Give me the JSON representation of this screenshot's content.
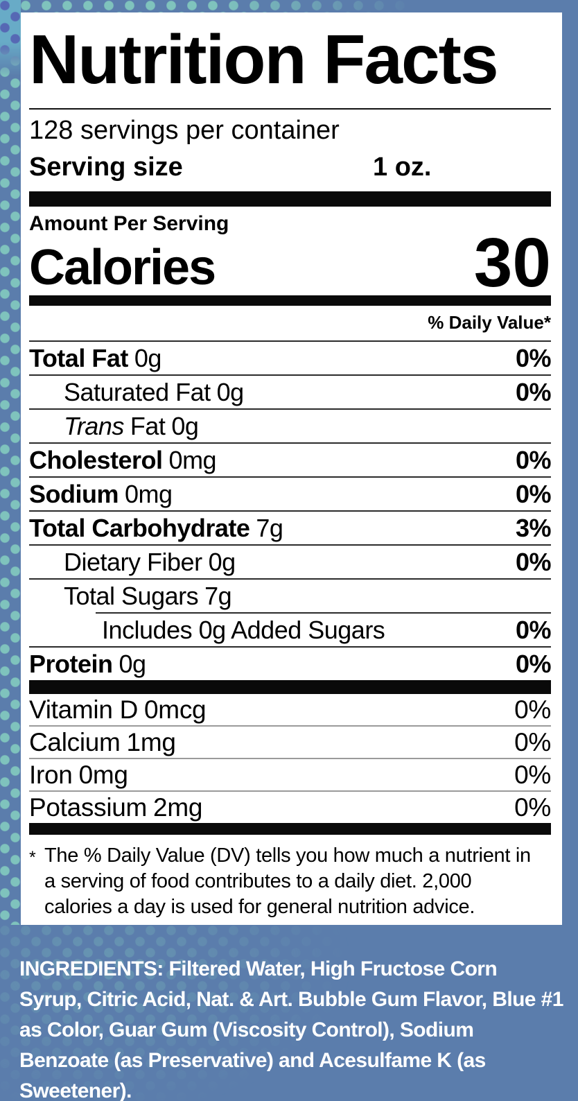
{
  "colors": {
    "background": "#5b7dac",
    "pattern_dot_teal": "#7fc3bd",
    "pattern_top_background": "#68abc7",
    "pattern_dot_indigo": "#5668b4",
    "label_background": "#ffffff",
    "label_text": "#000000",
    "ingredients_text": "#ffffff"
  },
  "label": {
    "title": "Nutrition Facts",
    "servings_per_container": "128 servings per container",
    "serving_size": {
      "label": "Serving size",
      "value": "1 oz."
    },
    "amount_per_serving": "Amount Per Serving",
    "calories": {
      "label": "Calories",
      "value": "30"
    },
    "daily_value_header": "% Daily Value*",
    "rows": [
      {
        "name": "Total Fat",
        "amount": "0g",
        "dv": "0%"
      },
      {
        "name": "Saturated Fat",
        "amount": "0g",
        "dv": "0%"
      },
      {
        "name_italic": "Trans",
        "name": "Fat",
        "amount": "0g",
        "dv": ""
      },
      {
        "name": "Cholesterol",
        "amount": "0mg",
        "dv": "0%"
      },
      {
        "name": "Sodium",
        "amount": "0mg",
        "dv": "0%"
      },
      {
        "name": "Total Carbohydrate",
        "amount": "7g",
        "dv": "3%"
      },
      {
        "name": "Dietary Fiber",
        "amount": "0g",
        "dv": "0%"
      },
      {
        "name": "Total Sugars",
        "amount": "7g",
        "dv": ""
      },
      {
        "name": "Includes 0g Added Sugars",
        "amount": "",
        "dv": "0%"
      },
      {
        "name": "Protein",
        "amount": "0g",
        "dv": "0%"
      }
    ],
    "micros": [
      {
        "name": "Vitamin D",
        "amount": "0mcg",
        "dv": "0%"
      },
      {
        "name": "Calcium",
        "amount": "1mg",
        "dv": "0%"
      },
      {
        "name": "Iron",
        "amount": "0mg",
        "dv": "0%"
      },
      {
        "name": "Potassium",
        "amount": "2mg",
        "dv": "0%"
      }
    ],
    "footnote_marker": "*",
    "footnote": "The % Daily Value (DV) tells you how much a nutrient in a serving of food contributes to a daily diet. 2,000 calories a day is used for general nutrition advice."
  },
  "ingredients": "INGREDIENTS: Filtered Water, High Fructose Corn Syrup, Citric Acid, Nat. & Art. Bubble Gum Flavor, Blue #1 as Color, Guar Gum (Viscosity Control), Sodium Benzoate (as Preservative) and Acesulfame K (as Sweetener)."
}
